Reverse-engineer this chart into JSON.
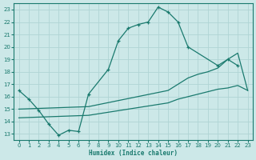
{
  "xlabel": "Humidex (Indice chaleur)",
  "bg_color": "#cce8e8",
  "grid_color": "#b0d4d4",
  "line_color": "#1a7a6e",
  "xlim": [
    -0.5,
    23.5
  ],
  "ylim": [
    12.5,
    23.5
  ],
  "xticks": [
    0,
    1,
    2,
    3,
    4,
    5,
    6,
    7,
    8,
    9,
    10,
    11,
    12,
    13,
    14,
    15,
    16,
    17,
    18,
    19,
    20,
    21,
    22,
    23
  ],
  "yticks": [
    13,
    14,
    15,
    16,
    17,
    18,
    19,
    20,
    21,
    22,
    23
  ],
  "line1_x": [
    0,
    1,
    2,
    3,
    4,
    5,
    6,
    7,
    9,
    10,
    11,
    12,
    13,
    14,
    15,
    16,
    17,
    20,
    21,
    22
  ],
  "line1_y": [
    16.5,
    15.8,
    14.9,
    13.8,
    12.9,
    13.3,
    13.2,
    16.2,
    18.2,
    20.5,
    21.5,
    21.8,
    22.0,
    23.2,
    22.8,
    22.0,
    20.0,
    18.5,
    19.0,
    18.5
  ],
  "line2_x": [
    0,
    7,
    15,
    16,
    17,
    18,
    19,
    20,
    21,
    22,
    23
  ],
  "line2_y": [
    15.0,
    15.2,
    16.5,
    17.0,
    17.5,
    17.8,
    18.0,
    18.3,
    19.0,
    19.5,
    16.5
  ],
  "line3_x": [
    0,
    7,
    15,
    16,
    17,
    18,
    19,
    20,
    21,
    22,
    23
  ],
  "line3_y": [
    14.3,
    14.5,
    15.5,
    15.8,
    16.0,
    16.2,
    16.4,
    16.6,
    16.7,
    16.9,
    16.5
  ]
}
